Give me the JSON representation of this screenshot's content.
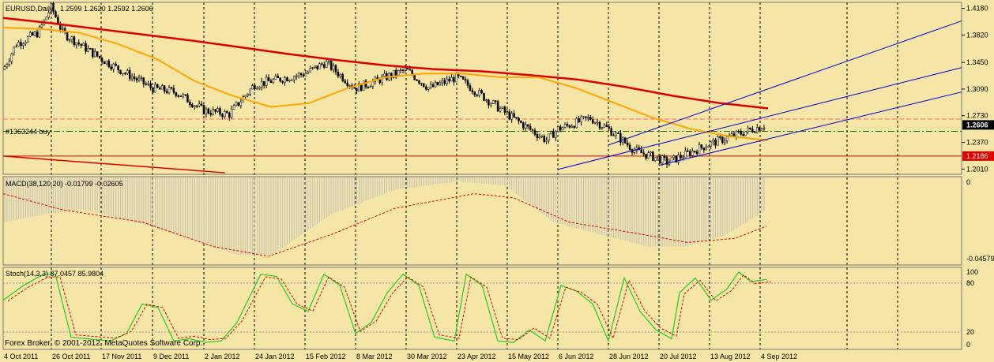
{
  "main_header": {
    "symbol": "EURUSD,Daily",
    "values": "1.2599 1.2620 1.2592 1.2606"
  },
  "price_axis": {
    "ticks": [
      "1.4180",
      "1.3820",
      "1.3450",
      "1.3090",
      "1.2730",
      "1.2370",
      "1.2010"
    ],
    "current_price": "1.2606",
    "support_label": "1.2186"
  },
  "order_label": "#1363244 buy",
  "macd": {
    "header": "MACD(38,120,20) -0.01799 -0.02605",
    "ticks": [
      "0",
      "-0.04579"
    ]
  },
  "stoch": {
    "header": "Stoch(14,3,3) 87.0457 85.9804",
    "ticks": [
      "100",
      "80",
      "20",
      "0"
    ]
  },
  "copyright": "Forex Broker, © 2001-2012, MetaQuotes Software Corp.",
  "time_axis": [
    "4 Oct 2011",
    "26 Oct 2011",
    "17 Nov 2011",
    "9 Dec 2011",
    "2 Jan 2012",
    "24 Jan 2012",
    "15 Feb 2012",
    "8 Mar 2012",
    "30 Mar 2012",
    "23 Apr 2012",
    "15 May 2012",
    "6 Jun 2012",
    "28 Jun 2012",
    "20 Jul 2012",
    "13 Aug 2012",
    "4 Sep 2012"
  ],
  "colors": {
    "background": "#F5E6A8",
    "sma_fast": "#FFA500",
    "sma_slow": "#DD0000",
    "channel": "#0000CC",
    "stoch_main": "#22CC22",
    "stoch_signal": "#DD0000",
    "macd_hist": "#BDBDBD"
  },
  "chart_data": {
    "type": "candlestick",
    "symbol": "EURUSD",
    "timeframe": "Daily",
    "price_range": [
      1.195,
      1.425
    ],
    "close_anchors": [
      {
        "date": "4 Oct 2011",
        "close": 1.335
      },
      {
        "date": "10 Oct 2011",
        "close": 1.37
      },
      {
        "date": "20 Oct 2011",
        "close": 1.385
      },
      {
        "date": "26 Oct 2011",
        "close": 1.42
      },
      {
        "date": "31 Oct 2011",
        "close": 1.385
      },
      {
        "date": "17 Nov 2011",
        "close": 1.35
      },
      {
        "date": "25 Nov 2011",
        "close": 1.335
      },
      {
        "date": "9 Dec 2011",
        "close": 1.31
      },
      {
        "date": "20 Dec 2011",
        "close": 1.305
      },
      {
        "date": "2 Jan 2012",
        "close": 1.28
      },
      {
        "date": "13 Jan 2012",
        "close": 1.275
      },
      {
        "date": "24 Jan 2012",
        "close": 1.315
      },
      {
        "date": "15 Feb 2012",
        "close": 1.33
      },
      {
        "date": "24 Feb 2012",
        "close": 1.345
      },
      {
        "date": "8 Mar 2012",
        "close": 1.31
      },
      {
        "date": "30 Mar 2012",
        "close": 1.335
      },
      {
        "date": "10 Apr 2012",
        "close": 1.31
      },
      {
        "date": "23 Apr 2012",
        "close": 1.325
      },
      {
        "date": "15 May 2012",
        "close": 1.275
      },
      {
        "date": "1 Jun 2012",
        "close": 1.24
      },
      {
        "date": "6 Jun 2012",
        "close": 1.255
      },
      {
        "date": "20 Jun 2012",
        "close": 1.27
      },
      {
        "date": "28 Jun 2012",
        "close": 1.255
      },
      {
        "date": "10 Jul 2012",
        "close": 1.225
      },
      {
        "date": "20 Jul 2012",
        "close": 1.215
      },
      {
        "date": "24 Jul 2012",
        "close": 1.21
      },
      {
        "date": "13 Aug 2012",
        "close": 1.235
      },
      {
        "date": "4 Sep 2012",
        "close": 1.2606
      }
    ],
    "sma_fast": [
      1.392,
      1.39,
      1.385,
      1.37,
      1.35,
      1.32,
      1.3,
      1.285,
      1.29,
      1.31,
      1.325,
      1.33,
      1.33,
      1.325,
      1.325,
      1.31,
      1.29,
      1.27,
      1.255,
      1.245,
      1.24
    ],
    "sma_slow": [
      1.405,
      1.398,
      1.39,
      1.382,
      1.374,
      1.365,
      1.356,
      1.348,
      1.341,
      1.336,
      1.333,
      1.328,
      1.322,
      1.312,
      1.3,
      1.29,
      1.283
    ],
    "horizontal_levels": {
      "current": 1.2606,
      "order_buy": 1.252,
      "support": 1.2186,
      "upper_dash": 1.2685
    },
    "channel": {
      "start": {
        "date": "6 Jun 2012",
        "price": 1.2005
      },
      "end": {
        "date": "extends right",
        "price": 1.338
      },
      "offset": 0.03
    },
    "macd": {
      "main": -0.01799,
      "signal": -0.02605,
      "range": [
        -0.04579,
        0
      ]
    },
    "stochastic": {
      "main": 87.0457,
      "signal": 85.9804,
      "levels": [
        20,
        80
      ]
    }
  }
}
